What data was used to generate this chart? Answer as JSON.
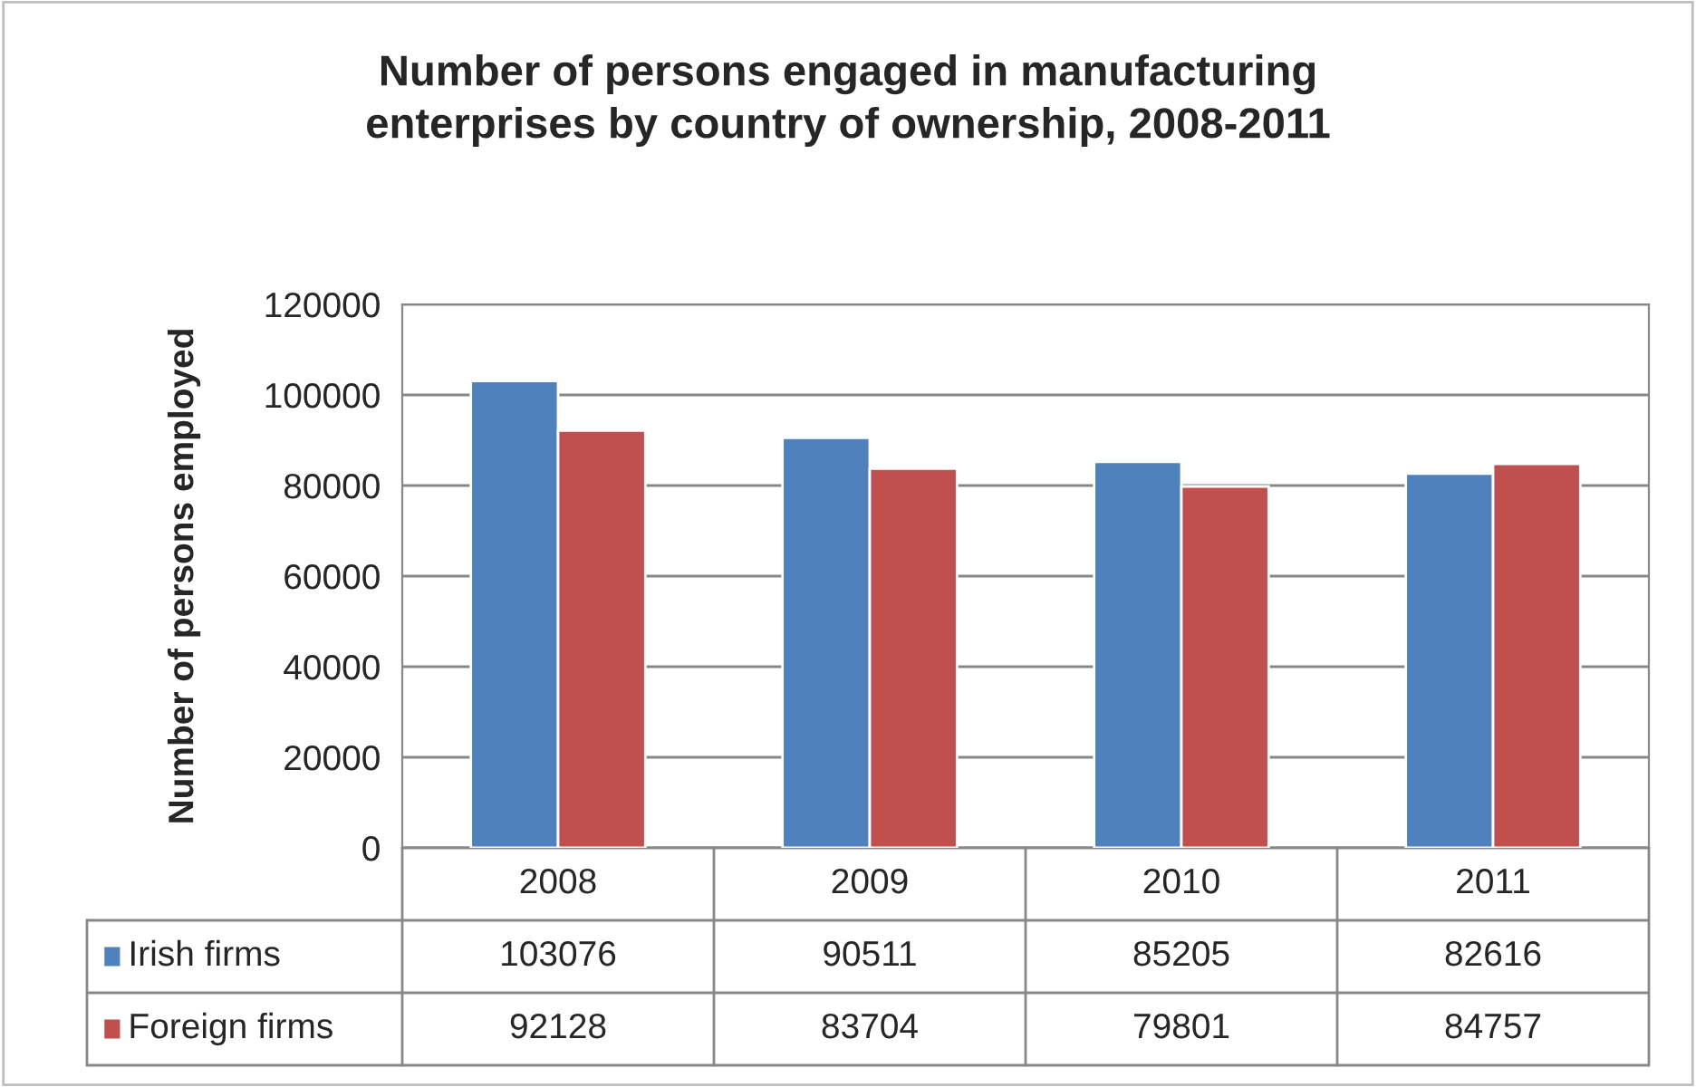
{
  "chart_data": {
    "type": "bar",
    "title": "Number of persons engaged in manufacturing\nenterprises by country of ownership, 2008-2011",
    "ylabel": "Number of persons employed",
    "categories": [
      "2008",
      "2009",
      "2010",
      "2011"
    ],
    "series": [
      {
        "name": "Irish firms",
        "color": "#4f81bd",
        "values": [
          103076,
          90511,
          85205,
          82616
        ]
      },
      {
        "name": "Foreign firms",
        "color": "#c0504d",
        "values": [
          92128,
          83704,
          79801,
          84757
        ]
      }
    ],
    "ylim": [
      0,
      120000
    ],
    "yticks": [
      0,
      20000,
      40000,
      60000,
      80000,
      100000,
      120000
    ],
    "grid": "y",
    "legend": "bottom",
    "data_labels": true
  }
}
